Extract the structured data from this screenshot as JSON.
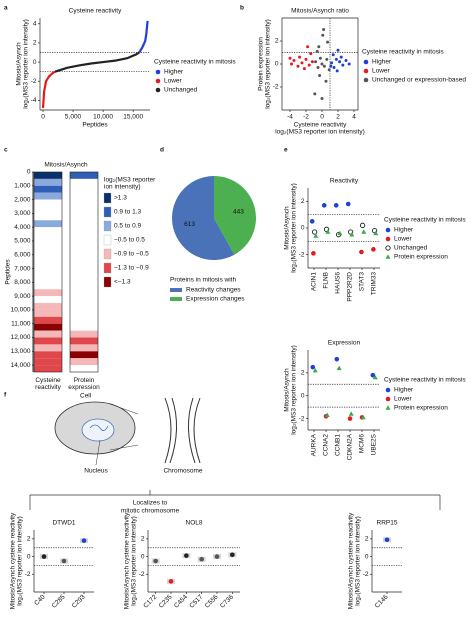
{
  "panel_labels": [
    "a",
    "b",
    "c",
    "d",
    "e",
    "f"
  ],
  "diagram": {
    "cell": "Cell",
    "nucleus": "Nucleus",
    "chromosome": "Chromosome",
    "caption": [
      "Localizes to",
      "mitotic chromosome"
    ]
  },
  "chart_data": [
    {
      "type": "line",
      "title": "Cysteine reactivity",
      "xlabel": [
        "Peptides"
      ],
      "ylabel": [
        "Mitosis/Asynch",
        "log₂(MS3 reporter ion intensity)"
      ],
      "xlim": [
        -500,
        17800
      ],
      "xticks": [
        0,
        {
          "value": 5000,
          "label": "5,000"
        },
        {
          "value": 10000,
          "label": "10,000"
        },
        {
          "value": 15000,
          "label": "15,000"
        }
      ],
      "ylim": [
        -5,
        4.6
      ],
      "yticks": [
        -4,
        -2,
        0,
        2,
        4
      ],
      "hlines": [
        1,
        -1
      ],
      "legend_title": "Cysteine reactivity in mitosis",
      "series": [
        {
          "name": "Higher",
          "color": "#1f3fd6",
          "x": [
            16000,
            16500,
            17000,
            17200,
            17400
          ],
          "y": [
            1,
            1.5,
            2.2,
            3,
            4.3
          ]
        },
        {
          "name": "Lower",
          "color": "#e41a1c",
          "x": [
            0,
            200,
            500,
            1000,
            1500,
            2000
          ],
          "y": [
            -4.8,
            -3,
            -2,
            -1.5,
            -1.2,
            -1
          ]
        },
        {
          "name": "Unchanged",
          "color": "#222222",
          "x": [
            2000,
            4000,
            6000,
            8000,
            10000,
            12000,
            14000,
            15500,
            16000
          ],
          "y": [
            -1,
            -0.6,
            -0.35,
            -0.15,
            0,
            0.15,
            0.4,
            0.8,
            1
          ]
        }
      ]
    },
    {
      "type": "scatter",
      "title": "Mitosis/Asynch ratio",
      "xlabel": [
        "Cysteine reactivity",
        "log₂(MS3 reporter ion intensity)"
      ],
      "ylabel": [
        "Protein expression",
        "log₂(MS3 reporter ion intensity)"
      ],
      "xlim": [
        -5,
        4.5
      ],
      "xticks": [
        -4,
        -2,
        0,
        2,
        4
      ],
      "ylim": [
        -4,
        4
      ],
      "yticks": [
        -2,
        0,
        2
      ],
      "hlines": [
        1
      ],
      "vlines": [
        1
      ],
      "legend_title": "Cysteine reactivity in mitosis",
      "series": [
        {
          "name": "Higher",
          "color": "#1f3fd6",
          "x": [
            1.2,
            1.5,
            1.8,
            2.2,
            2.6,
            3.0,
            1.4,
            1.9,
            2.4,
            3.4,
            1.1,
            2.0
          ],
          "y": [
            0.1,
            -0.3,
            0.4,
            0.2,
            -0.1,
            0.3,
            0.8,
            -0.6,
            0.6,
            0.0,
            -0.2,
            1.2
          ]
        },
        {
          "name": "Lower",
          "color": "#e41a1c",
          "x": [
            -1.2,
            -1.6,
            -2.0,
            -2.5,
            -3.0,
            -3.5,
            -4.0,
            -1.4,
            -2.2,
            -2.8,
            -1.8,
            -3.8
          ],
          "y": [
            0.2,
            -0.1,
            0.4,
            0.1,
            -0.2,
            0.3,
            0.5,
            0.9,
            -0.4,
            0.6,
            1.5,
            0.0
          ]
        },
        {
          "name": "Unchanged or expression-based",
          "color": "#555555",
          "x": [
            -0.8,
            -0.5,
            -0.2,
            0,
            0.3,
            0.6,
            0.9,
            -0.4,
            0.1,
            0.5,
            -0.9,
            0.2,
            -0.6,
            0.7,
            0,
            -0.3
          ],
          "y": [
            0.2,
            -0.3,
            0.5,
            0,
            -0.2,
            0.4,
            -0.5,
            1.5,
            2.5,
            -1.5,
            -2.6,
            3.0,
            1.1,
            1.9,
            -3.0,
            -1.0
          ]
        }
      ]
    },
    {
      "type": "heatmap",
      "title": "Mitosis/Asynch",
      "ylabel": [
        "Peptides"
      ],
      "yreverse": true,
      "ylim": [
        0,
        14500
      ],
      "yticks": [
        0,
        {
          "value": 1000,
          "label": "1,000"
        },
        {
          "value": 2000,
          "label": "2,000"
        },
        {
          "value": 3000,
          "label": "3,000"
        },
        {
          "value": 4000,
          "label": "4,000"
        },
        {
          "value": 5000,
          "label": "5,000"
        },
        {
          "value": 6000,
          "label": "6,000"
        },
        {
          "value": 7000,
          "label": "7,000"
        },
        {
          "value": 8000,
          "label": "8,000"
        },
        {
          "value": 9000,
          "label": "9,000"
        },
        {
          "value": 10000,
          "label": "10,000"
        },
        {
          "value": 11000,
          "label": "11,000"
        },
        {
          "value": 12000,
          "label": "12,000"
        },
        {
          "value": 13000,
          "label": "13,000"
        },
        {
          "value": 14000,
          "label": "14,000"
        }
      ],
      "y_bins": [
        0,
        500,
        1000,
        1500,
        2000,
        2500,
        3000,
        3500,
        4000,
        4500,
        5000,
        5500,
        6000,
        6500,
        7000,
        7500,
        8000,
        8500,
        9000,
        9500,
        10000,
        10500,
        11000,
        11500,
        12000,
        12500,
        13000,
        13500,
        14000,
        14500
      ],
      "color_breaks": [
        1.3,
        0.9,
        0.5,
        -0.5,
        -0.9,
        -1.3
      ],
      "legend_title": [
        "log₂(MS3 reporter",
        "ion intensity)"
      ],
      "legend": [
        {
          "label": ">1.3",
          "color": "#08306b"
        },
        {
          "label": "0.9 to 1.3",
          "color": "#2e5fb5"
        },
        {
          "label": "0.5 to 0.9",
          "color": "#8aa9dc"
        },
        {
          "label": "−0.5 to 0.5",
          "color": "#ffffff"
        },
        {
          "label": "−0.9 to −0.5",
          "color": "#f5b8b8"
        },
        {
          "label": "−1.3 to −0.9",
          "color": "#e0474c"
        },
        {
          "label": "<−1.3",
          "color": "#8b0000"
        }
      ],
      "series": [
        {
          "name": "Cysteine reactivity",
          "values": [
            1.5,
            0.7,
            1.0,
            0.6,
            0,
            0.3,
            0,
            0.7,
            0,
            0,
            0,
            0,
            0,
            0,
            0,
            0,
            0,
            -0.6,
            0,
            -0.6,
            -0.7,
            -1.0,
            -1.5,
            -0.7,
            -1.1,
            -0.8,
            -1.2,
            -0.9,
            -1.0
          ]
        },
        {
          "name": "Protein expression",
          "values": [
            1.0,
            0,
            0,
            0,
            0,
            0,
            0,
            0,
            0,
            0,
            0,
            0,
            0,
            0,
            0,
            0,
            0,
            0,
            0,
            0,
            0,
            0,
            0,
            -0.6,
            -1.1,
            -0.6,
            -1.4,
            -0.7,
            0
          ]
        }
      ]
    },
    {
      "type": "pie",
      "legend_title": "Proteins in mitosis with",
      "categories": [
        "Reactivity changes",
        "Expression changes"
      ],
      "values": [
        613,
        443
      ],
      "colors": [
        "#4a72b8",
        "#4caf50"
      ]
    },
    {
      "type": "dot",
      "title": "Reactivity",
      "ylabel": [
        "Mitosis/Asynch",
        "log₂(MS3 reporter ion intensity)"
      ],
      "categories": [
        "ACIN1",
        "FLNB",
        "HAUS6",
        "PPP2R2D",
        "STAT3",
        "TRIM33"
      ],
      "ylim": [
        -3,
        3
      ],
      "yticks": [
        -2,
        0,
        2
      ],
      "hlines": [
        1,
        -1
      ],
      "legend_title": "Cysteine reactivity in mitosis",
      "series": [
        {
          "name": "Higher",
          "color": "#1f3fd6",
          "marker": "circle",
          "values": [
            0.5,
            1.7,
            1.7,
            1.8,
            null,
            null
          ]
        },
        {
          "name": "Lower",
          "color": "#e41a1c",
          "marker": "circle",
          "values": [
            -1.9,
            null,
            null,
            null,
            -1.8,
            -1.6
          ]
        },
        {
          "name": "Unchanged",
          "color": "#222222",
          "marker": "ring",
          "values": [
            -0.3,
            -0.1,
            -0.5,
            -0.3,
            0.2,
            -0.2
          ]
        },
        {
          "name": "Protein expression",
          "color": "#3aa845",
          "marker": "triangle",
          "values": [
            -0.6,
            -0.3,
            -0.4,
            -0.5,
            -0.3,
            -0.4
          ]
        }
      ]
    },
    {
      "type": "dot",
      "title": "Expression",
      "ylabel": [
        "Mitosis/Asynch",
        "log₂(MS3 reporter ion intensity)"
      ],
      "categories": [
        "AURKA",
        "CCNA2",
        "CCNB1",
        "CDKN2A",
        "MCM6",
        "UBE2S"
      ],
      "ylim": [
        -3,
        4
      ],
      "yticks": [
        -2,
        0,
        2
      ],
      "hlines": [
        1,
        -1
      ],
      "legend_title": "Cysteine reactivity in mitosis",
      "series": [
        {
          "name": "Higher",
          "color": "#1f3fd6",
          "marker": "circle",
          "values": [
            2.5,
            null,
            3.2,
            null,
            null,
            1.8
          ]
        },
        {
          "name": "Lower",
          "color": "#e41a1c",
          "marker": "circle",
          "values": [
            null,
            -1.8,
            null,
            -2.0,
            -1.9,
            null
          ]
        },
        {
          "name": "Protein expression",
          "color": "#3aa845",
          "marker": "triangle",
          "values": [
            2.2,
            -1.7,
            2.4,
            -1.6,
            -1.9,
            1.6
          ]
        }
      ]
    },
    {
      "type": "dot",
      "title": "DTWD1",
      "ylabel": [
        "Mitosis/Asynch cysteine reactivity",
        "log₂(MS3 reporter ion intensity)"
      ],
      "categories": [
        "C40",
        "C285",
        "C293"
      ],
      "ylim": [
        -4,
        3
      ],
      "yticks": [
        -2,
        0,
        2
      ],
      "hlines": [
        1,
        -1
      ],
      "series": [
        {
          "marker": "circle",
          "colors": [
            "#222222",
            "#555555",
            "#1f3fd6"
          ],
          "values": [
            0,
            -0.5,
            1.8
          ]
        }
      ]
    },
    {
      "type": "dot",
      "title": "NOL8",
      "ylabel": [
        "Mitosis/Asynch cysteine reactivity",
        "log₂(MS3 reporter ion intensity)"
      ],
      "categories": [
        "C172",
        "C235",
        "C454",
        "C517",
        "C556",
        "C736"
      ],
      "ylim": [
        -4,
        3
      ],
      "yticks": [
        -2,
        0,
        2
      ],
      "hlines": [
        1,
        -1
      ],
      "series": [
        {
          "marker": "circle",
          "colors": [
            "#555555",
            "#e41a1c",
            "#222222",
            "#555555",
            "#555555",
            "#222222"
          ],
          "values": [
            -0.5,
            -2.8,
            0.1,
            -0.3,
            0,
            0.2
          ]
        }
      ]
    },
    {
      "type": "dot",
      "title": "RRP15",
      "ylabel": [
        "Mitosis/Asynch cysteine reactivity",
        "log₂(MS3 reporter ion intensity)"
      ],
      "categories": [
        "C146"
      ],
      "ylim": [
        -4,
        3
      ],
      "yticks": [
        -2,
        0,
        2
      ],
      "hlines": [
        1,
        -1
      ],
      "series": [
        {
          "marker": "circle",
          "colors": [
            "#1f3fd6"
          ],
          "values": [
            1.9
          ]
        }
      ]
    }
  ]
}
